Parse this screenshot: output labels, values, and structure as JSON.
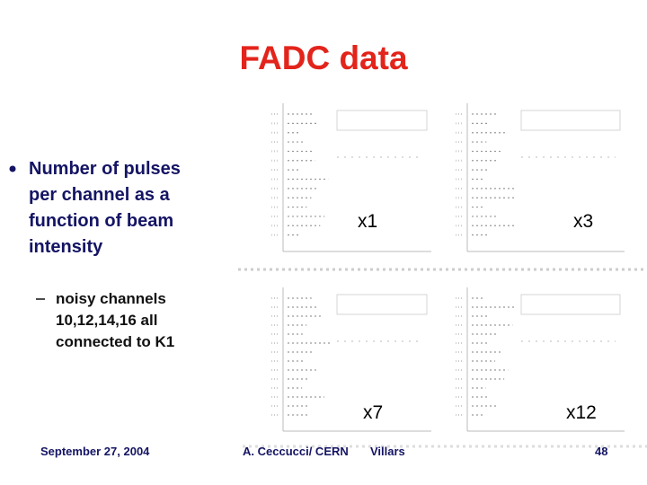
{
  "slide": {
    "title": "FADC data",
    "bullet": {
      "lines": [
        "Number of pulses",
        "per channel as a",
        "function of beam",
        "intensity"
      ]
    },
    "sub_bullet": {
      "lines": [
        "noisy channels",
        "10,12,14,16 all",
        "connected to K1"
      ]
    },
    "panel_labels": [
      "x1",
      "x3",
      "x7",
      "x12"
    ],
    "footer": {
      "date": "September 27, 2004",
      "author": "A. Ceccucci/ CERN",
      "venue": "Villars",
      "page": "48"
    }
  }
}
